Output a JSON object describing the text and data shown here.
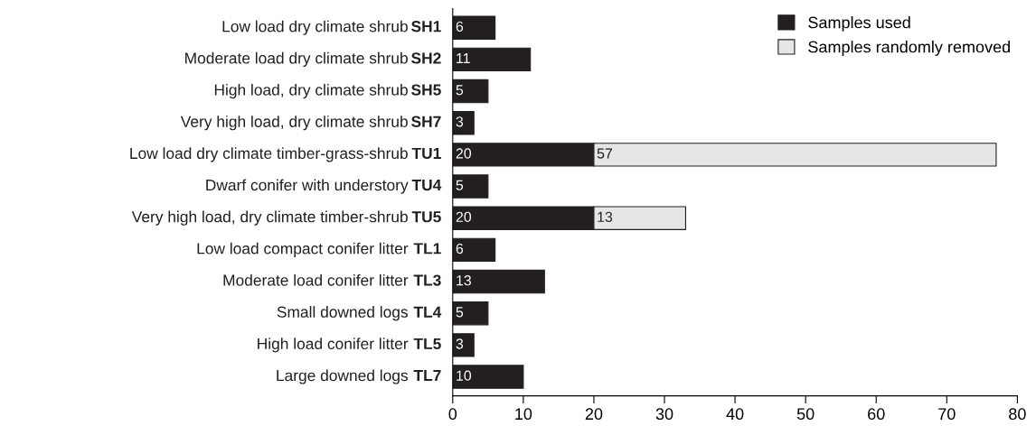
{
  "chart_data": {
    "type": "bar",
    "orientation": "horizontal",
    "stacked": true,
    "categories": [
      "Low load dry climate shrub SH1",
      "Moderate load dry climate shrub SH2",
      "High load, dry climate shrub SH5",
      "Very high load, dry climate shrub SH7",
      "Low load dry climate timber-grass-shrub TU1",
      "Dwarf conifer with understory TU4",
      "Very high load, dry climate timber-shrub TU5",
      "Low load compact conifer litter TL1",
      "Moderate load conifer litter TL3",
      "Small downed logs TL4",
      "High load conifer litter TL5",
      "Large downed logs TL7"
    ],
    "series": [
      {
        "name": "Samples used",
        "color": "#231f20",
        "values": [
          6,
          11,
          5,
          3,
          20,
          5,
          20,
          6,
          13,
          5,
          3,
          10
        ]
      },
      {
        "name": "Samples randomly removed",
        "color": "#e6e6e6",
        "values": [
          null,
          null,
          null,
          null,
          57,
          null,
          13,
          null,
          null,
          null,
          null,
          null
        ]
      }
    ],
    "xlim": [
      0,
      80
    ],
    "xticks": [
      0,
      10,
      20,
      30,
      40,
      50,
      60,
      70,
      80
    ],
    "data_labels": true,
    "legend": "top right",
    "grid": false
  }
}
